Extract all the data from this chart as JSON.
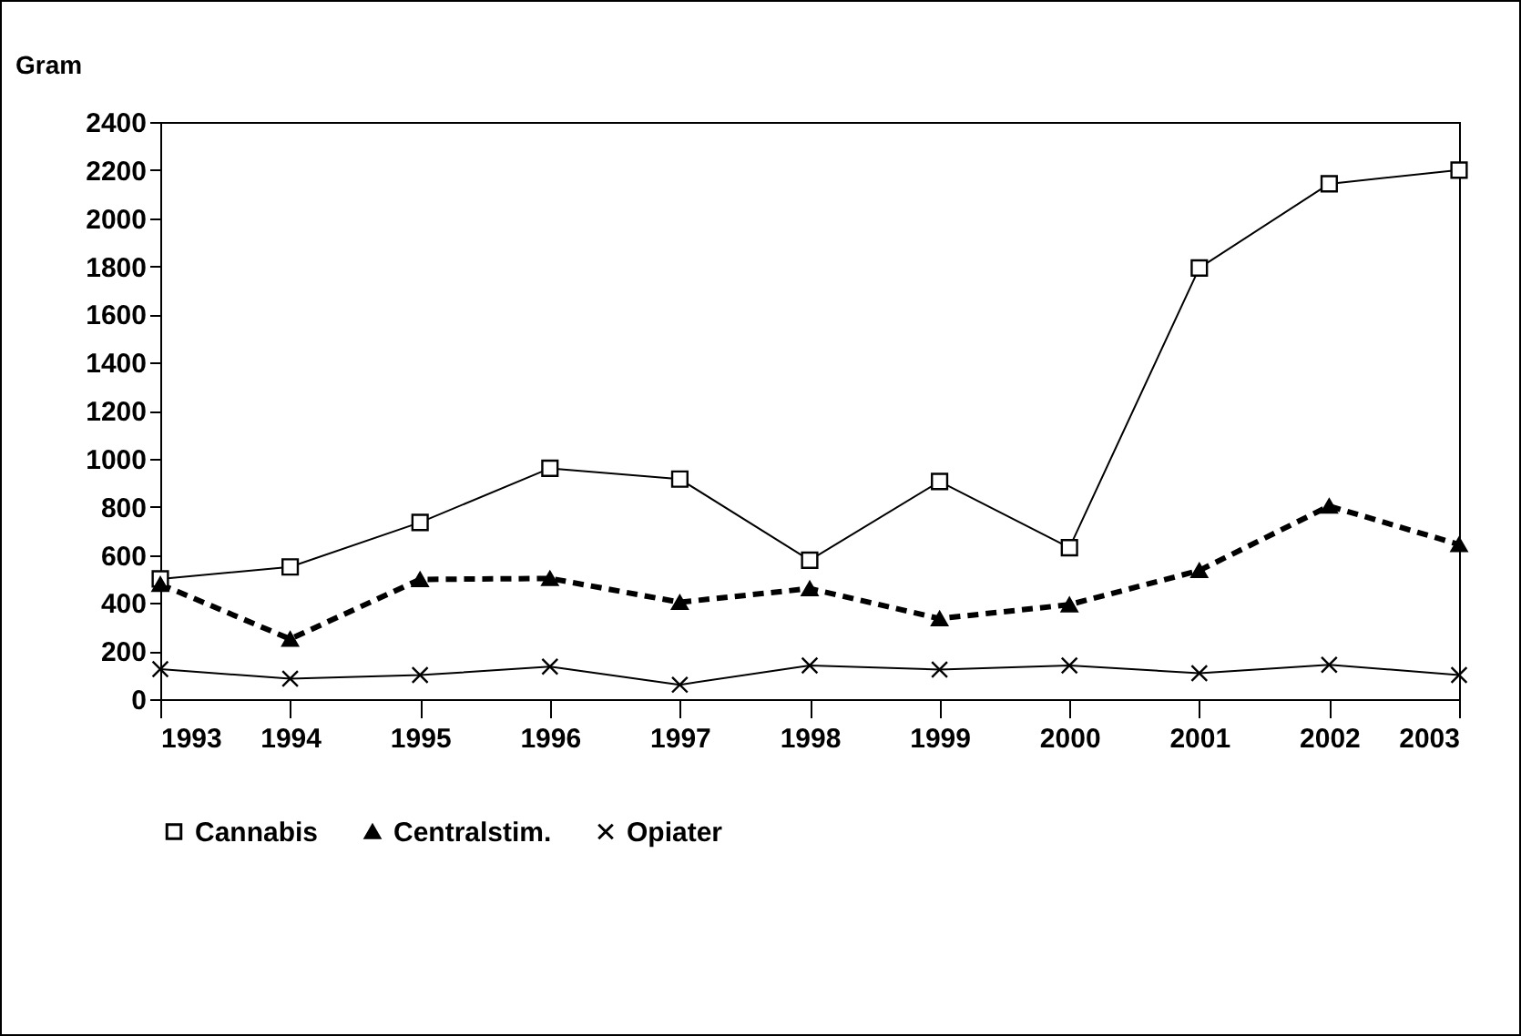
{
  "chart_data": {
    "type": "line",
    "ylabel": "Gram",
    "x": [
      1993,
      1994,
      1995,
      1996,
      1997,
      1998,
      1999,
      2000,
      2001,
      2002,
      2003
    ],
    "xlim": [
      1993,
      2003
    ],
    "xticks": [
      1993,
      1994,
      1995,
      1996,
      1997,
      1998,
      1999,
      2000,
      2001,
      2002,
      2003
    ],
    "ylim": [
      0,
      2400
    ],
    "yticks": [
      0,
      200,
      400,
      600,
      800,
      1000,
      1200,
      1400,
      1600,
      1800,
      2000,
      2200,
      2400
    ],
    "grid": false,
    "legend": "bottom",
    "series": [
      {
        "name": "Cannabis",
        "color": "#000000",
        "marker": "square",
        "line_style": "solid",
        "values": [
          500,
          550,
          735,
          960,
          915,
          578,
          905,
          630,
          1793,
          2143,
          2200
        ]
      },
      {
        "name": "Centralstim.",
        "color": "#000000",
        "marker": "triangle",
        "line_style": "dashed",
        "values": [
          478,
          250,
          498,
          502,
          403,
          460,
          335,
          393,
          535,
          803,
          643
        ]
      },
      {
        "name": "Opiater",
        "color": "#000000",
        "marker": "cross",
        "line_style": "solid",
        "values": [
          125,
          85,
          100,
          135,
          60,
          140,
          123,
          140,
          108,
          143,
          100
        ]
      }
    ]
  }
}
